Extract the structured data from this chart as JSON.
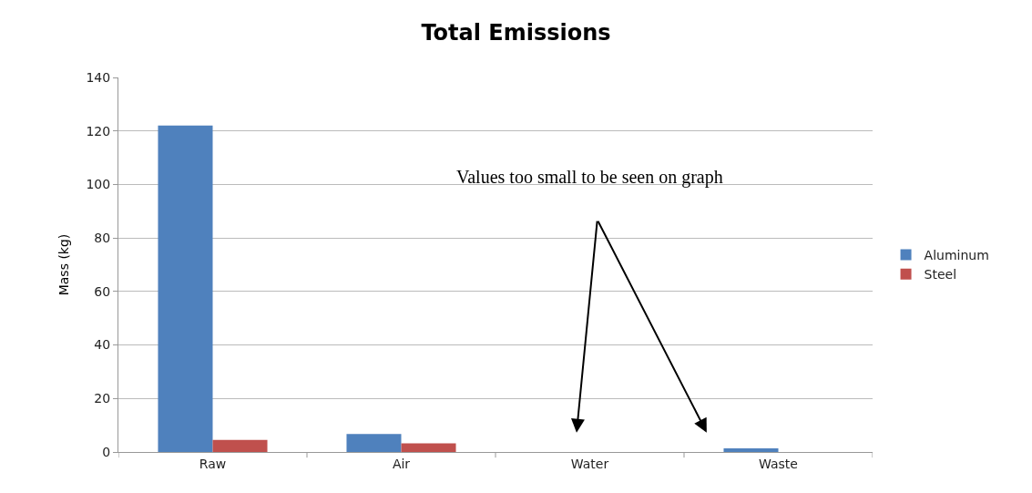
{
  "chart_data": {
    "type": "bar",
    "title": "Total Emissions",
    "ylabel": "Mass (kg)",
    "categories": [
      "Raw",
      "Air",
      "Water",
      "Waste"
    ],
    "series": [
      {
        "name": "Aluminum",
        "color": "#4f81bd",
        "values": [
          122,
          6.7,
          null,
          1.4
        ]
      },
      {
        "name": "Steel",
        "color": "#c0504d",
        "values": [
          4.5,
          3.2,
          null,
          null
        ]
      }
    ],
    "ylim": [
      0,
      140
    ],
    "yticks": [
      0,
      20,
      40,
      60,
      80,
      100,
      120,
      140
    ],
    "grid": "y",
    "legend": "right",
    "annotations": [
      "Values too small to be seen on graph"
    ]
  }
}
